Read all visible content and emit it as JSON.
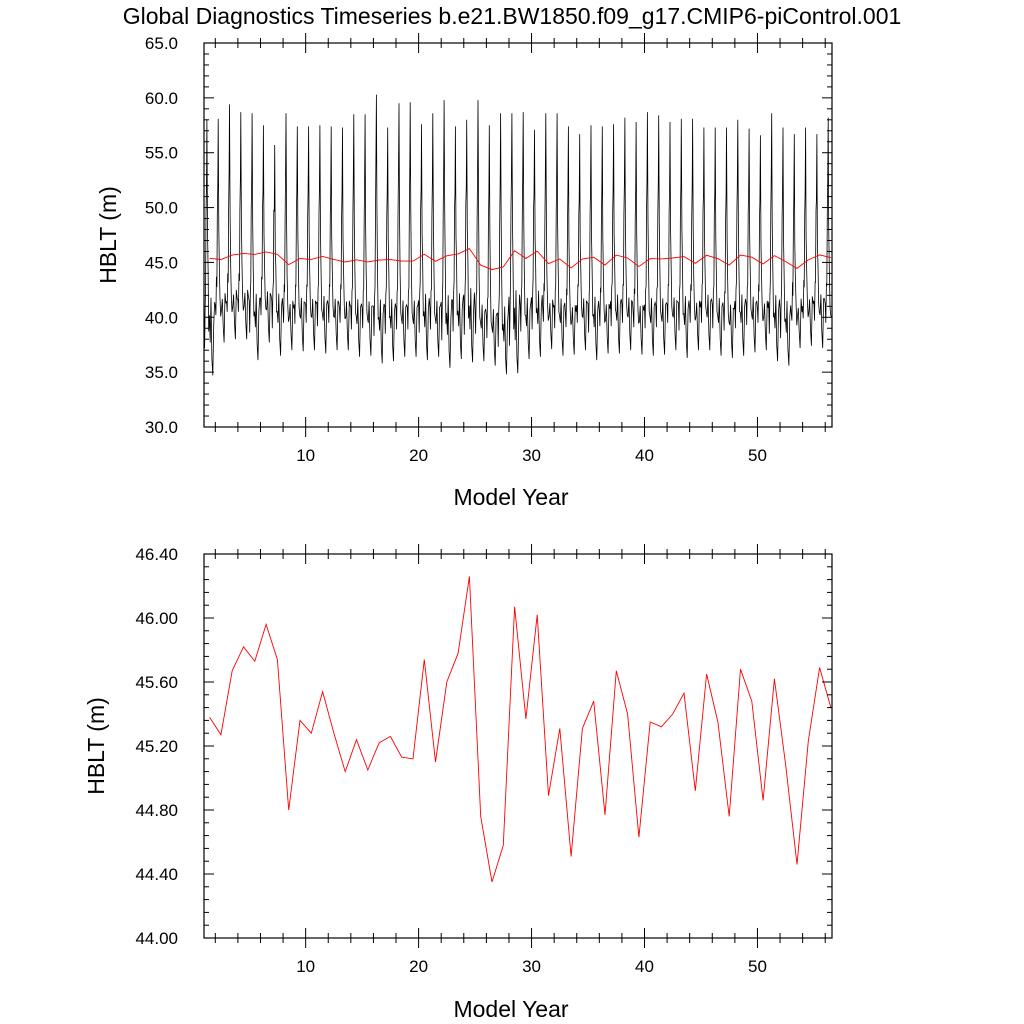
{
  "title": "Global Diagnostics Timeseries b.e21.BW1850.f09_g17.CMIP6-piControl.001",
  "colors": {
    "monthly": "#000000",
    "annual": "#ff0000",
    "axis": "#000000",
    "background": "#ffffff"
  },
  "chart_data": [
    {
      "type": "line",
      "xlabel": "Model Year",
      "ylabel": "HBLT (m)",
      "xlim": [
        1,
        56.6
      ],
      "ylim": [
        30,
        65
      ],
      "xticks": [
        10,
        20,
        30,
        40,
        50
      ],
      "yticks": [
        "30.0",
        "35.0",
        "40.0",
        "45.0",
        "50.0",
        "55.0",
        "60.0",
        "65.0"
      ],
      "monthly_cycle": {
        "description_key": "monthly",
        "peaks": [
          58.0,
          58.1,
          59.4,
          58.7,
          58.6,
          57.5,
          55.7,
          58.6,
          57.4,
          57.4,
          57.5,
          57.4,
          57.3,
          58.5,
          58.5,
          60.3,
          57.3,
          59.5,
          59.6,
          57.6,
          58.6,
          59.8,
          57.4,
          58.0,
          59.8,
          57.5,
          58.6,
          58.6,
          58.7,
          57.1,
          58.6,
          58.6,
          57.4,
          56.7,
          57.5,
          57.4,
          57.6,
          58.2,
          57.8,
          58.7,
          58.4,
          57.8,
          58.1,
          58.1,
          57.3,
          57.3,
          57.3,
          58.0,
          57.2,
          56.6,
          58.6,
          57.3,
          56.7,
          57.3,
          56.7,
          58.2
        ],
        "troughs": [
          34.7,
          37.7,
          38.0,
          38.0,
          36.1,
          37.7,
          36.5,
          37.0,
          36.9,
          37.0,
          36.7,
          37.0,
          37.0,
          36.4,
          36.5,
          35.8,
          36.0,
          36.4,
          36.4,
          36.1,
          36.4,
          35.4,
          36.2,
          35.9,
          36.0,
          35.6,
          34.8,
          34.9,
          36.2,
          36.4,
          37.1,
          36.5,
          36.6,
          37.0,
          36.1,
          36.7,
          36.7,
          37.0,
          36.6,
          36.5,
          36.6,
          37.0,
          36.3,
          37.0,
          37.0,
          36.5,
          36.3,
          36.5,
          36.8,
          37.0,
          36.0,
          35.6,
          37.2,
          37.4,
          37.2,
          37.0
        ]
      },
      "series": [
        {
          "name": "",
          "key": "annual",
          "values": [
            45.38,
            45.27,
            45.67,
            45.82,
            45.73,
            45.96,
            45.74,
            44.8,
            45.36,
            45.28,
            45.54,
            45.28,
            45.04,
            45.24,
            45.05,
            45.22,
            45.26,
            45.13,
            45.12,
            45.74,
            45.1,
            45.6,
            45.78,
            46.26,
            44.76,
            44.35,
            44.58,
            46.07,
            45.37,
            46.02,
            44.89,
            45.31,
            44.51,
            45.31,
            45.48,
            44.77,
            45.67,
            45.4,
            44.63,
            45.35,
            45.32,
            45.4,
            45.53,
            44.92,
            45.65,
            45.35,
            44.76,
            45.68,
            45.48,
            44.86,
            45.62,
            45.08,
            44.46,
            45.23,
            45.69,
            45.44
          ]
        }
      ],
      "x_start": 1.5
    },
    {
      "type": "line",
      "xlabel": "Model Year",
      "ylabel": "HBLT (m)",
      "xlim": [
        1,
        56.6
      ],
      "ylim": [
        44.0,
        46.4
      ],
      "xticks": [
        10,
        20,
        30,
        40,
        50
      ],
      "yticks": [
        "44.00",
        "44.40",
        "44.80",
        "45.20",
        "45.60",
        "46.00",
        "46.40"
      ],
      "series": [
        {
          "name": "",
          "key": "annual",
          "values": [
            45.38,
            45.27,
            45.67,
            45.82,
            45.73,
            45.96,
            45.74,
            44.8,
            45.36,
            45.28,
            45.54,
            45.28,
            45.04,
            45.24,
            45.05,
            45.22,
            45.26,
            45.13,
            45.12,
            45.74,
            45.1,
            45.6,
            45.78,
            46.26,
            44.76,
            44.35,
            44.58,
            46.07,
            45.37,
            46.02,
            44.89,
            45.31,
            44.51,
            45.31,
            45.48,
            44.77,
            45.67,
            45.4,
            44.63,
            45.35,
            45.32,
            45.4,
            45.53,
            44.92,
            45.65,
            45.35,
            44.76,
            45.68,
            45.48,
            44.86,
            45.62,
            45.08,
            44.46,
            45.23,
            45.69,
            45.44
          ]
        }
      ],
      "x_start": 1.5
    }
  ]
}
